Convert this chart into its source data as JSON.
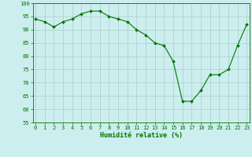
{
  "x": [
    0,
    1,
    2,
    3,
    4,
    5,
    6,
    7,
    8,
    9,
    10,
    11,
    12,
    13,
    14,
    15,
    16,
    17,
    18,
    19,
    20,
    21,
    22,
    23
  ],
  "y": [
    94,
    93,
    91,
    93,
    94,
    96,
    97,
    97,
    95,
    94,
    93,
    90,
    88,
    85,
    84,
    78,
    63,
    63,
    67,
    73,
    73,
    75,
    84,
    92
  ],
  "line_color": "#007700",
  "marker_color": "#007700",
  "bg_color": "#cceeee",
  "grid_color": "#aacccc",
  "xlabel": "Humidité relative (%)",
  "xlabel_color": "#007700",
  "ylim": [
    55,
    100
  ],
  "yticks": [
    55,
    60,
    65,
    70,
    75,
    80,
    85,
    90,
    95,
    100
  ],
  "xticks": [
    0,
    1,
    2,
    3,
    4,
    5,
    6,
    7,
    8,
    9,
    10,
    11,
    12,
    13,
    14,
    15,
    16,
    17,
    18,
    19,
    20,
    21,
    22,
    23
  ],
  "tick_color": "#007700",
  "spine_color": "#007700",
  "tick_fontsize": 5.0,
  "xlabel_fontsize": 6.0
}
